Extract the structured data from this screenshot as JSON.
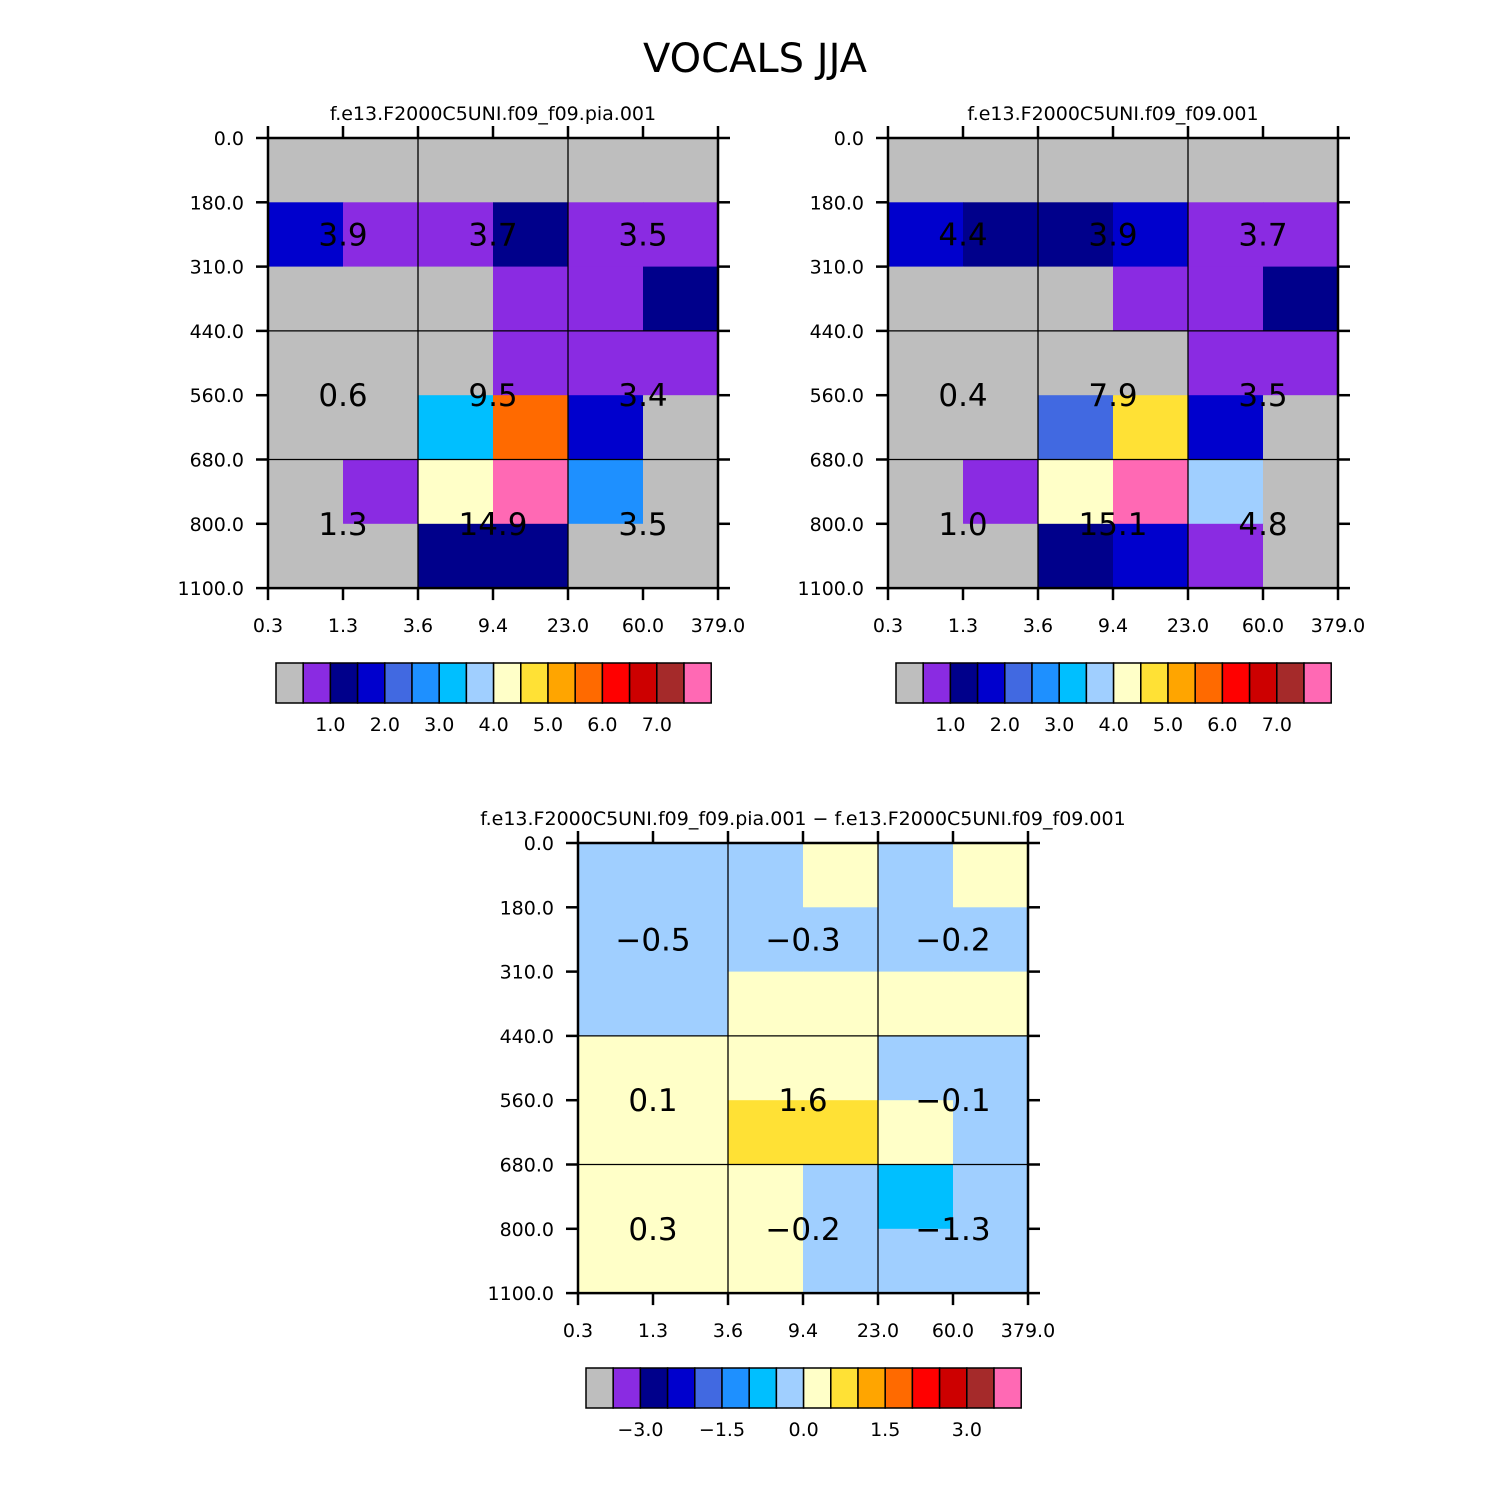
{
  "figure": {
    "title": "VOCALS JJA"
  },
  "colors": {
    "palette": [
      "#bebebe",
      "#8a2be2",
      "#00008b",
      "#0000cd",
      "#4169e1",
      "#1e90ff",
      "#00bfff",
      "#a0cfff",
      "#ffffc8",
      "#ffe135",
      "#ffa500",
      "#ff6a00",
      "#ff0000",
      "#cd0000",
      "#a52a2a",
      "#ff69b4"
    ]
  },
  "chart_data": [
    {
      "type": "heatmap",
      "id": "p1",
      "title": "f.e13.F2000C5UNI.f09_f09.pia.001",
      "x_ticks": [
        "0.3",
        "1.3",
        "3.6",
        "9.4",
        "23.0",
        "60.0",
        "379.0"
      ],
      "y_ticks": [
        "0.0",
        "180.0",
        "310.0",
        "440.0",
        "560.0",
        "680.0",
        "800.0",
        "1100.0"
      ],
      "x_label": "",
      "y_label": "",
      "cells": [
        [
          0,
          0,
          0,
          0,
          0,
          0
        ],
        [
          3,
          1,
          1,
          2,
          1,
          1
        ],
        [
          0,
          0,
          0,
          1,
          1,
          2
        ],
        [
          0,
          0,
          0,
          1,
          1,
          1
        ],
        [
          0,
          0,
          6,
          11,
          3,
          0
        ],
        [
          0,
          1,
          8,
          15,
          5,
          0
        ],
        [
          0,
          0,
          2,
          2,
          0,
          0
        ]
      ],
      "annotations": [
        {
          "label": "3.9",
          "col": 0,
          "row": 1
        },
        {
          "label": "3.7",
          "col": 1,
          "row": 1
        },
        {
          "label": "3.5",
          "col": 2,
          "row": 1
        },
        {
          "label": "0.6",
          "col": 0,
          "row": 2
        },
        {
          "label": "9.5",
          "col": 1,
          "row": 2
        },
        {
          "label": "3.4",
          "col": 2,
          "row": 2
        },
        {
          "label": "1.3",
          "col": 0,
          "row": 3
        },
        {
          "label": "14.9",
          "col": 1,
          "row": 3
        },
        {
          "label": "3.5",
          "col": 2,
          "row": 3
        }
      ],
      "colorbar": {
        "labels": [
          "1.0",
          "2.0",
          "3.0",
          "4.0",
          "5.0",
          "6.0",
          "7.0"
        ]
      }
    },
    {
      "type": "heatmap",
      "id": "p2",
      "title": "f.e13.F2000C5UNI.f09_f09.001",
      "x_ticks": [
        "0.3",
        "1.3",
        "3.6",
        "9.4",
        "23.0",
        "60.0",
        "379.0"
      ],
      "y_ticks": [
        "0.0",
        "180.0",
        "310.0",
        "440.0",
        "560.0",
        "680.0",
        "800.0",
        "1100.0"
      ],
      "x_label": "",
      "y_label": "",
      "cells": [
        [
          0,
          0,
          0,
          0,
          0,
          0
        ],
        [
          3,
          2,
          2,
          3,
          1,
          1
        ],
        [
          0,
          0,
          0,
          1,
          1,
          2
        ],
        [
          0,
          0,
          0,
          0,
          1,
          1
        ],
        [
          0,
          0,
          4,
          9,
          3,
          0
        ],
        [
          0,
          1,
          8,
          15,
          7,
          0
        ],
        [
          0,
          0,
          2,
          3,
          1,
          0
        ]
      ],
      "annotations": [
        {
          "label": "4.4",
          "col": 0,
          "row": 1
        },
        {
          "label": "3.9",
          "col": 1,
          "row": 1
        },
        {
          "label": "3.7",
          "col": 2,
          "row": 1
        },
        {
          "label": "0.4",
          "col": 0,
          "row": 2
        },
        {
          "label": "7.9",
          "col": 1,
          "row": 2
        },
        {
          "label": "3.5",
          "col": 2,
          "row": 2
        },
        {
          "label": "1.0",
          "col": 0,
          "row": 3
        },
        {
          "label": "15.1",
          "col": 1,
          "row": 3
        },
        {
          "label": "4.8",
          "col": 2,
          "row": 3
        }
      ],
      "colorbar": {
        "labels": [
          "1.0",
          "2.0",
          "3.0",
          "4.0",
          "5.0",
          "6.0",
          "7.0"
        ]
      }
    },
    {
      "type": "heatmap",
      "id": "p3",
      "title": "f.e13.F2000C5UNI.f09_f09.pia.001 − f.e13.F2000C5UNI.f09_f09.001",
      "x_ticks": [
        "0.3",
        "1.3",
        "3.6",
        "9.4",
        "23.0",
        "60.0",
        "379.0"
      ],
      "y_ticks": [
        "0.0",
        "180.0",
        "310.0",
        "440.0",
        "560.0",
        "680.0",
        "800.0",
        "1100.0"
      ],
      "x_label": "",
      "y_label": "",
      "cells": [
        [
          7,
          7,
          7,
          8,
          7,
          8
        ],
        [
          7,
          7,
          7,
          7,
          7,
          7
        ],
        [
          7,
          7,
          8,
          8,
          8,
          8
        ],
        [
          8,
          8,
          8,
          8,
          7,
          7
        ],
        [
          8,
          8,
          9,
          9,
          8,
          7
        ],
        [
          8,
          8,
          8,
          7,
          6,
          7
        ],
        [
          8,
          8,
          8,
          7,
          7,
          7
        ]
      ],
      "annotations": [
        {
          "label": "−0.5",
          "col": 0,
          "row": 1
        },
        {
          "label": "−0.3",
          "col": 1,
          "row": 1
        },
        {
          "label": "−0.2",
          "col": 2,
          "row": 1
        },
        {
          "label": "0.1",
          "col": 0,
          "row": 2
        },
        {
          "label": "1.6",
          "col": 1,
          "row": 2
        },
        {
          "label": "−0.1",
          "col": 2,
          "row": 2
        },
        {
          "label": "0.3",
          "col": 0,
          "row": 3
        },
        {
          "label": "−0.2",
          "col": 1,
          "row": 3
        },
        {
          "label": "−1.3",
          "col": 2,
          "row": 3
        }
      ],
      "colorbar": {
        "labels": [
          "−3.0",
          "−1.5",
          "0.0",
          "1.5",
          "3.0"
        ]
      }
    }
  ]
}
